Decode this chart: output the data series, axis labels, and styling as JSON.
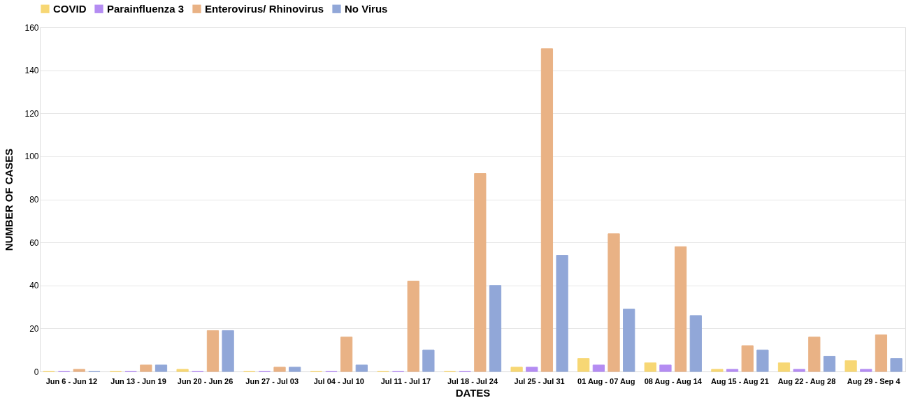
{
  "chart_data": {
    "type": "bar",
    "xlabel": "DATES",
    "ylabel": "NUMBER OF CASES",
    "categories": [
      "Jun 6 - Jun 12",
      "Jun 13 - Jun 19",
      "Jun 20 - Jun 26",
      "Jun 27 - Jul 03",
      "Jul 04 - Jul 10",
      "Jul 11 - Jul 17",
      "Jul 18 - Jul 24",
      "Jul 25 - Jul 31",
      "01 Aug - 07 Aug",
      "08 Aug - Aug 14",
      "Aug 15 - Aug 21",
      "Aug 22 - Aug 28",
      "Aug 29 - Sep 4"
    ],
    "series": [
      {
        "name": "COVID",
        "color": "#f7d774",
        "values": [
          0,
          0,
          1,
          0,
          0,
          0,
          0,
          2,
          6,
          4,
          1,
          4,
          5
        ]
      },
      {
        "name": "Parainfluenza 3",
        "color": "#b48cf2",
        "values": [
          0,
          0,
          0,
          0,
          0,
          0,
          0,
          2,
          3,
          3,
          1,
          1,
          1
        ]
      },
      {
        "name": "Enterovirus/ Rhinovirus",
        "color": "#e9b285",
        "values": [
          1,
          3,
          19,
          2,
          16,
          42,
          92,
          150,
          64,
          58,
          12,
          16,
          17
        ]
      },
      {
        "name": "No Virus",
        "color": "#91a7d8",
        "values": [
          0,
          3,
          19,
          2,
          3,
          10,
          40,
          54,
          29,
          26,
          10,
          7,
          6
        ]
      }
    ],
    "ylim": [
      0,
      160
    ],
    "yticks": [
      0,
      20,
      40,
      60,
      80,
      100,
      120,
      140,
      160
    ],
    "grid": "y",
    "legend": "top"
  }
}
